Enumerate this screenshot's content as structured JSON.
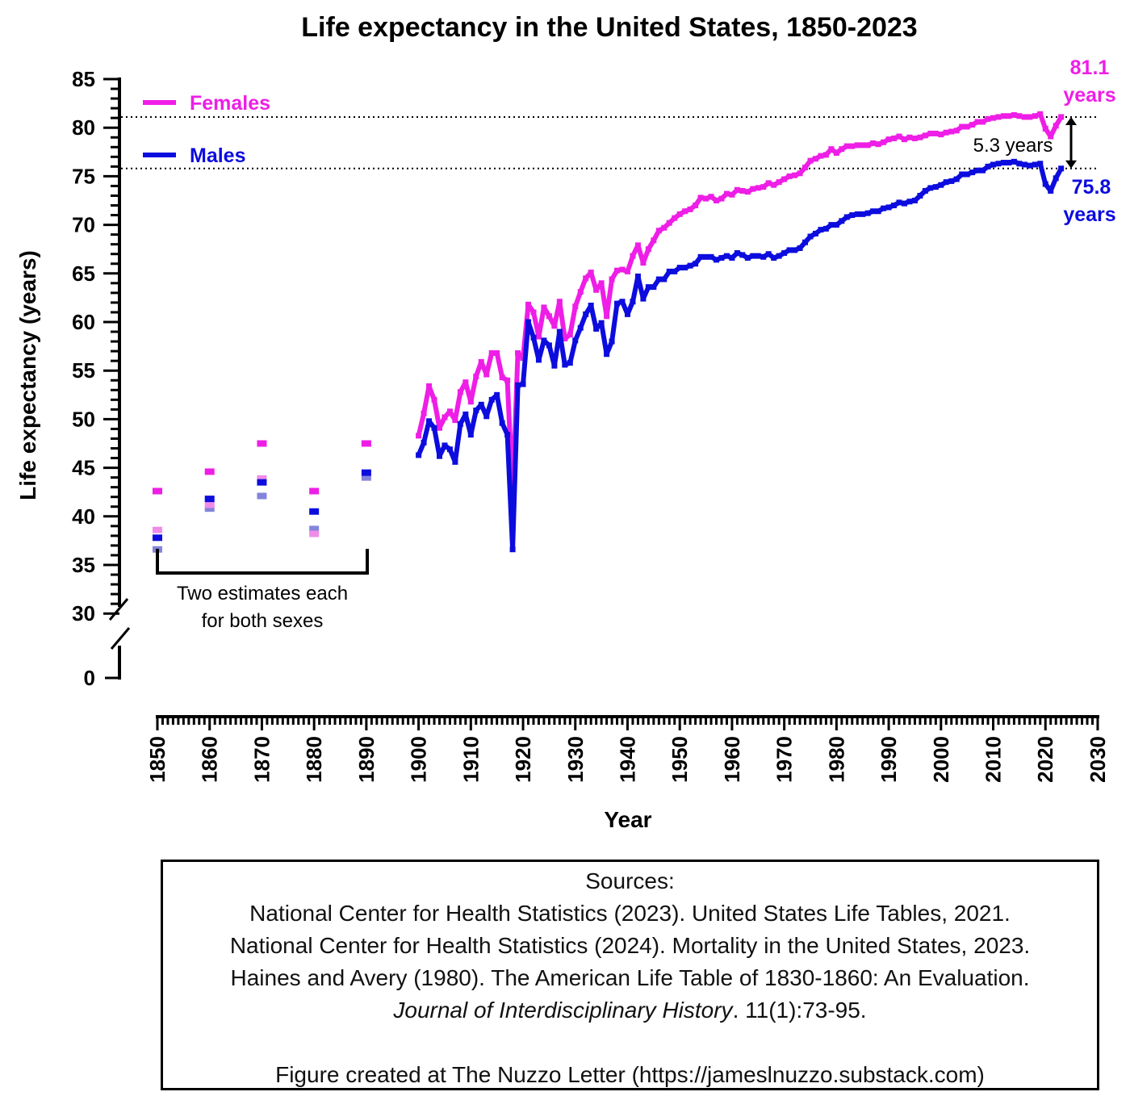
{
  "chart_data": {
    "type": "line",
    "title": "Life expectancy in the United States, 1850-2023",
    "xlabel": "Year",
    "ylabel": "Life expectancy (years)",
    "xlim": [
      1850,
      2030
    ],
    "ylim": [
      30,
      85
    ],
    "y_break": "axis broken between 0 and 30",
    "x_ticks": [
      "1850",
      "1860",
      "1870",
      "1880",
      "1890",
      "1900",
      "1910",
      "1920",
      "1930",
      "1940",
      "1950",
      "1960",
      "1970",
      "1980",
      "1990",
      "2000",
      "2010",
      "2020",
      "2030"
    ],
    "y_ticks": [
      "0",
      "30",
      "35",
      "40",
      "45",
      "50",
      "55",
      "60",
      "65",
      "70",
      "75",
      "80",
      "85"
    ],
    "legend": {
      "placement": "top-left",
      "entries": [
        {
          "name": "Females",
          "color": "#ee1ee6"
        },
        {
          "name": "Males",
          "color": "#0c0cde"
        }
      ]
    },
    "colors": {
      "females": "#ee1ee6",
      "males": "#0c0cde",
      "females_light": "#f08ce8",
      "males_light": "#8484dc"
    },
    "historic_estimates": {
      "years": [
        1850,
        1860,
        1870,
        1880,
        1890
      ],
      "females_a": [
        42.6,
        44.6,
        47.5,
        42.6,
        47.5
      ],
      "females_b": [
        38.6,
        41.2,
        43.9,
        38.2,
        47.5
      ],
      "males_a": [
        37.8,
        41.8,
        43.5,
        40.5,
        44.5
      ],
      "males_b": [
        36.6,
        40.8,
        42.1,
        38.7,
        44.0
      ]
    },
    "x": [
      1900,
      1901,
      1902,
      1903,
      1904,
      1905,
      1906,
      1907,
      1908,
      1909,
      1910,
      1911,
      1912,
      1913,
      1914,
      1915,
      1916,
      1917,
      1918,
      1919,
      1920,
      1921,
      1922,
      1923,
      1924,
      1925,
      1926,
      1927,
      1928,
      1929,
      1930,
      1931,
      1932,
      1933,
      1934,
      1935,
      1936,
      1937,
      1938,
      1939,
      1940,
      1941,
      1942,
      1943,
      1944,
      1945,
      1946,
      1947,
      1948,
      1949,
      1950,
      1951,
      1952,
      1953,
      1954,
      1955,
      1956,
      1957,
      1958,
      1959,
      1960,
      1961,
      1962,
      1963,
      1964,
      1965,
      1966,
      1967,
      1968,
      1969,
      1970,
      1971,
      1972,
      1973,
      1974,
      1975,
      1976,
      1977,
      1978,
      1979,
      1980,
      1981,
      1982,
      1983,
      1984,
      1985,
      1986,
      1987,
      1988,
      1989,
      1990,
      1991,
      1992,
      1993,
      1994,
      1995,
      1996,
      1997,
      1998,
      1999,
      2000,
      2001,
      2002,
      2003,
      2004,
      2005,
      2006,
      2007,
      2008,
      2009,
      2010,
      2011,
      2012,
      2013,
      2014,
      2015,
      2016,
      2017,
      2018,
      2019,
      2020,
      2021,
      2022,
      2023
    ],
    "series": [
      {
        "name": "Females",
        "values": [
          48.3,
          50.6,
          53.4,
          52.0,
          49.1,
          50.2,
          50.8,
          49.9,
          52.8,
          53.8,
          51.8,
          54.4,
          55.9,
          54.6,
          56.8,
          56.8,
          54.3,
          54.0,
          42.2,
          56.8,
          56.3,
          61.8,
          61.0,
          58.5,
          61.5,
          60.6,
          59.6,
          62.1,
          58.3,
          58.7,
          61.6,
          63.1,
          64.5,
          65.1,
          63.3,
          64.0,
          60.6,
          64.4,
          65.3,
          65.4,
          65.2,
          66.8,
          67.9,
          66.1,
          67.5,
          68.4,
          69.4,
          69.7,
          70.2,
          70.7,
          71.1,
          71.4,
          71.6,
          72.0,
          72.8,
          72.7,
          72.9,
          72.5,
          72.7,
          73.2,
          73.1,
          73.6,
          73.5,
          73.4,
          73.7,
          73.8,
          73.9,
          74.3,
          74.1,
          74.4,
          74.7,
          75.0,
          75.1,
          75.3,
          75.9,
          76.6,
          76.8,
          77.1,
          77.2,
          77.8,
          77.4,
          77.8,
          78.1,
          78.1,
          78.2,
          78.2,
          78.2,
          78.4,
          78.3,
          78.5,
          78.8,
          78.9,
          79.1,
          78.8,
          79.0,
          78.9,
          79.0,
          79.2,
          79.4,
          79.4,
          79.3,
          79.5,
          79.6,
          79.7,
          80.1,
          80.1,
          80.3,
          80.6,
          80.6,
          80.9,
          81.0,
          81.1,
          81.2,
          81.2,
          81.3,
          81.2,
          81.1,
          81.1,
          81.2,
          81.4,
          79.9,
          79.1,
          80.2,
          81.1
        ]
      },
      {
        "name": "Males",
        "values": [
          46.3,
          47.6,
          49.8,
          49.1,
          46.2,
          47.3,
          46.9,
          45.6,
          49.5,
          50.5,
          48.4,
          50.9,
          51.5,
          50.3,
          52.0,
          52.5,
          49.6,
          48.4,
          36.6,
          53.5,
          53.6,
          60.0,
          58.4,
          56.1,
          58.1,
          57.6,
          55.5,
          59.0,
          55.6,
          55.8,
          58.1,
          59.4,
          60.8,
          61.7,
          59.3,
          59.9,
          56.7,
          58.0,
          61.9,
          62.1,
          60.8,
          62.1,
          64.7,
          62.4,
          63.6,
          63.6,
          64.4,
          64.4,
          65.2,
          65.2,
          65.6,
          65.6,
          65.8,
          66.0,
          66.7,
          66.7,
          66.7,
          66.4,
          66.6,
          66.8,
          66.6,
          67.1,
          66.9,
          66.6,
          66.8,
          66.8,
          66.7,
          67.0,
          66.6,
          66.8,
          67.1,
          67.4,
          67.4,
          67.6,
          68.2,
          68.8,
          69.1,
          69.5,
          69.6,
          70.0,
          70.0,
          70.4,
          70.8,
          71.0,
          71.1,
          71.1,
          71.2,
          71.4,
          71.4,
          71.7,
          71.8,
          72.0,
          72.3,
          72.2,
          72.4,
          72.5,
          73.0,
          73.5,
          73.8,
          73.9,
          74.1,
          74.4,
          74.5,
          74.7,
          75.2,
          75.2,
          75.4,
          75.6,
          75.6,
          76.0,
          76.2,
          76.3,
          76.4,
          76.4,
          76.5,
          76.3,
          76.2,
          76.1,
          76.2,
          76.3,
          74.2,
          73.5,
          74.8,
          75.8
        ]
      }
    ],
    "annotations": {
      "female_latest": "81.1 years",
      "male_latest": "75.8 years",
      "gap": "5.3 years",
      "bracket_line1": "Two estimates each",
      "bracket_line2": "for both sexes"
    }
  },
  "sources": {
    "heading": "Sources:",
    "lines": [
      "National Center for Health Statistics (2023). United States Life Tables, 2021.",
      "National Center for Health Statistics (2024). Mortality in the United States, 2023.",
      "Haines and Avery (1980). The American Life Table of 1830-1860: An Evaluation."
    ],
    "journal_italic": "Journal of Interdisciplinary History",
    "journal_rest": ". 11(1):73-95.",
    "credit": "Figure created at The Nuzzo Letter (https://jameslnuzzo.substack.com)"
  }
}
